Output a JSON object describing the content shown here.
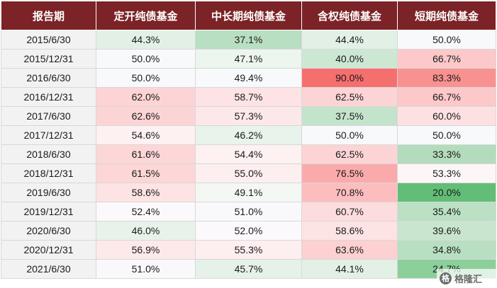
{
  "table": {
    "headers": [
      "报告期",
      "定开纯债基金",
      "中长期纯债基金",
      "含权纯债基金",
      "短期纯债基金"
    ],
    "rows": [
      {
        "date": "2015/6/30",
        "values": [
          "44.3%",
          "37.1%",
          "44.4%",
          "50.0%"
        ],
        "colors": [
          "#e2f0e5",
          "#b8dfc2",
          "#e2f0e5",
          "#f7f9fb"
        ]
      },
      {
        "date": "2015/12/31",
        "values": [
          "50.0%",
          "47.1%",
          "40.0%",
          "66.7%"
        ],
        "colors": [
          "#f7f9fb",
          "#edf5ef",
          "#cce8d3",
          "#fcc8c9"
        ]
      },
      {
        "date": "2016/6/30",
        "values": [
          "50.0%",
          "49.4%",
          "90.0%",
          "83.3%"
        ],
        "colors": [
          "#f7f9fb",
          "#f7f9fb",
          "#f56f6f",
          "#f99191"
        ]
      },
      {
        "date": "2016/12/31",
        "values": [
          "62.0%",
          "58.7%",
          "62.5%",
          "66.7%"
        ],
        "colors": [
          "#fdd4d5",
          "#fde3e4",
          "#fdd4d5",
          "#fcc8c9"
        ]
      },
      {
        "date": "2017/6/30",
        "values": [
          "62.6%",
          "57.3%",
          "37.5%",
          "60.0%"
        ],
        "colors": [
          "#fdd4d5",
          "#fde8e9",
          "#c3e4cb",
          "#fde1e2"
        ]
      },
      {
        "date": "2017/12/31",
        "values": [
          "54.6%",
          "46.2%",
          "50.0%",
          "50.0%"
        ],
        "colors": [
          "#fdf1f2",
          "#e8f3eb",
          "#f7f9fb",
          "#f7f9fb"
        ]
      },
      {
        "date": "2018/6/30",
        "values": [
          "61.6%",
          "54.4%",
          "62.5%",
          "33.3%"
        ],
        "colors": [
          "#fdd6d7",
          "#fdf1f2",
          "#fdd4d5",
          "#b2dcbc"
        ]
      },
      {
        "date": "2018/12/31",
        "values": [
          "61.5%",
          "55.0%",
          "76.5%",
          "53.3%"
        ],
        "colors": [
          "#fdd6d7",
          "#fdeff0",
          "#fbaaab",
          "#fdf6f7"
        ]
      },
      {
        "date": "2019/6/30",
        "values": [
          "58.6%",
          "49.1%",
          "70.8%",
          "20.0%"
        ],
        "colors": [
          "#fde3e4",
          "#f4f8f5",
          "#fcbdbe",
          "#62be76"
        ]
      },
      {
        "date": "2019/12/31",
        "values": [
          "52.4%",
          "51.0%",
          "60.7%",
          "35.4%"
        ],
        "colors": [
          "#fbf9fb",
          "#f9f9fb",
          "#fddcdd",
          "#bbe0c4"
        ]
      },
      {
        "date": "2020/6/30",
        "values": [
          "46.0%",
          "52.0%",
          "58.6%",
          "39.6%"
        ],
        "colors": [
          "#e7f3ea",
          "#fbf9fb",
          "#fde3e4",
          "#c8e6cf"
        ]
      },
      {
        "date": "2020/12/31",
        "values": [
          "56.9%",
          "55.3%",
          "63.6%",
          "34.8%"
        ],
        "colors": [
          "#fde9ea",
          "#fdeeef",
          "#fdd0d1",
          "#b8dfc2"
        ]
      },
      {
        "date": "2021/6/30",
        "values": [
          "51.0%",
          "45.7%",
          "44.1%",
          "24.7%"
        ],
        "colors": [
          "#f9f9fb",
          "#e6f2e9",
          "#e2f0e5",
          "#8ccf9b"
        ]
      }
    ]
  },
  "watermark": {
    "logo_char": "格",
    "text": "格隆汇"
  }
}
